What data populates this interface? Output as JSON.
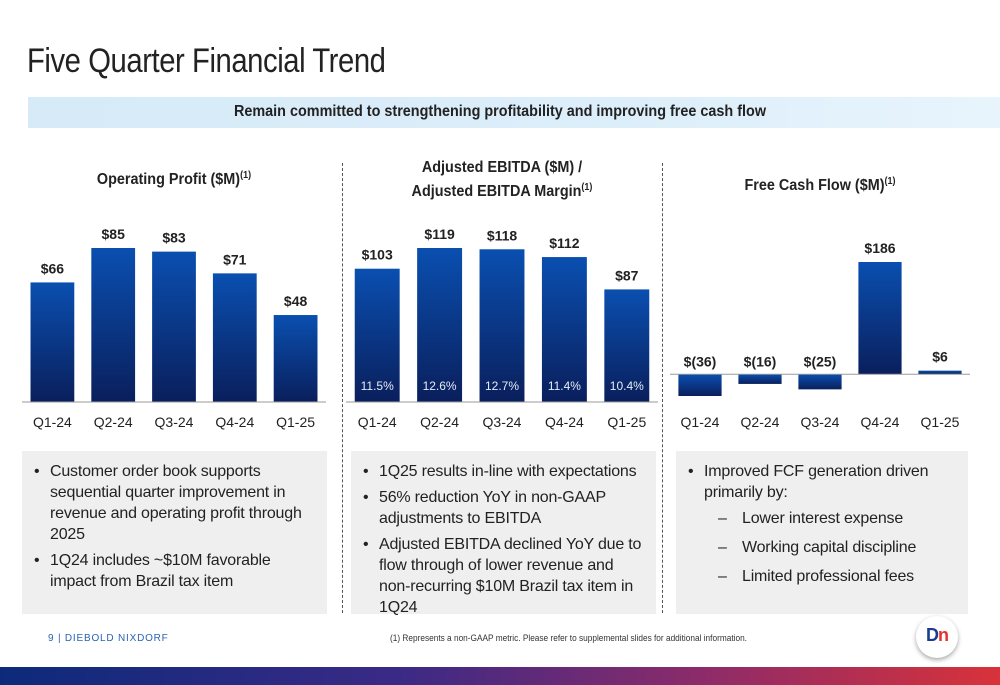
{
  "page": {
    "title": "Five Quarter Financial Trend",
    "banner": "Remain committed to strengthening profitability and improving free cash flow"
  },
  "panels": [
    {
      "title_lines": [
        "Operating Profit ($M)"
      ],
      "title_sup": "(1)",
      "notes": [
        {
          "text": "Customer order book supports sequential quarter improvement in revenue and operating profit through 2025",
          "sub": false
        },
        {
          "text": "1Q24 includes ~$10M favorable impact from Brazil tax item",
          "sub": false
        }
      ]
    },
    {
      "title_lines": [
        "Adjusted EBITDA ($M) /",
        "Adjusted EBITDA Margin"
      ],
      "title_sup": "(1)",
      "notes": [
        {
          "text": "1Q25 results in-line with expectations",
          "sub": false
        },
        {
          "text": "56% reduction YoY in non-GAAP adjustments to EBITDA",
          "sub": false
        },
        {
          "text": "Adjusted EBITDA declined YoY due to flow through of lower revenue and non-recurring $10M Brazil tax item in 1Q24",
          "sub": false
        }
      ]
    },
    {
      "title_lines": [
        "Free Cash Flow ($M)"
      ],
      "title_sup": "(1)",
      "notes": [
        {
          "text": "Improved FCF generation driven primarily by:",
          "sub": false
        },
        {
          "text": "Lower interest expense",
          "sub": true
        },
        {
          "text": "Working capital discipline",
          "sub": true
        },
        {
          "text": "Limited professional fees",
          "sub": true
        }
      ]
    }
  ],
  "chart_data": [
    {
      "type": "bar",
      "title": "Operating Profit ($M)",
      "categories": [
        "Q1-24",
        "Q2-24",
        "Q3-24",
        "Q4-24",
        "Q1-25"
      ],
      "values": [
        66,
        85,
        83,
        71,
        48
      ],
      "value_labels": [
        "$66",
        "$85",
        "$83",
        "$71",
        "$48"
      ],
      "bar_color": "#0a4fb0"
    },
    {
      "type": "bar",
      "title": "Adjusted EBITDA ($M) / Adjusted EBITDA Margin",
      "categories": [
        "Q1-24",
        "Q2-24",
        "Q3-24",
        "Q4-24",
        "Q1-25"
      ],
      "values": [
        103,
        119,
        118,
        112,
        87
      ],
      "value_labels": [
        "$103",
        "$119",
        "$118",
        "$112",
        "$87"
      ],
      "margin_labels": [
        "11.5%",
        "12.6%",
        "12.7%",
        "11.4%",
        "10.4%"
      ],
      "bar_color": "#0a4fb0"
    },
    {
      "type": "bar",
      "title": "Free Cash Flow ($M)",
      "categories": [
        "Q1-24",
        "Q2-24",
        "Q3-24",
        "Q4-24",
        "Q1-25"
      ],
      "values": [
        -36,
        -16,
        -25,
        186,
        6
      ],
      "value_labels": [
        "$(36)",
        "$(16)",
        "$(25)",
        "$186",
        "$6"
      ],
      "bar_color": "#0a4fb0"
    }
  ],
  "footer": {
    "left": "9 | DIEBOLD NIXDORF",
    "footnote": "(1)    Represents a non-GAAP metric.  Please refer to supplemental slides for additional information.",
    "logo_d": "D",
    "logo_n": "n"
  }
}
